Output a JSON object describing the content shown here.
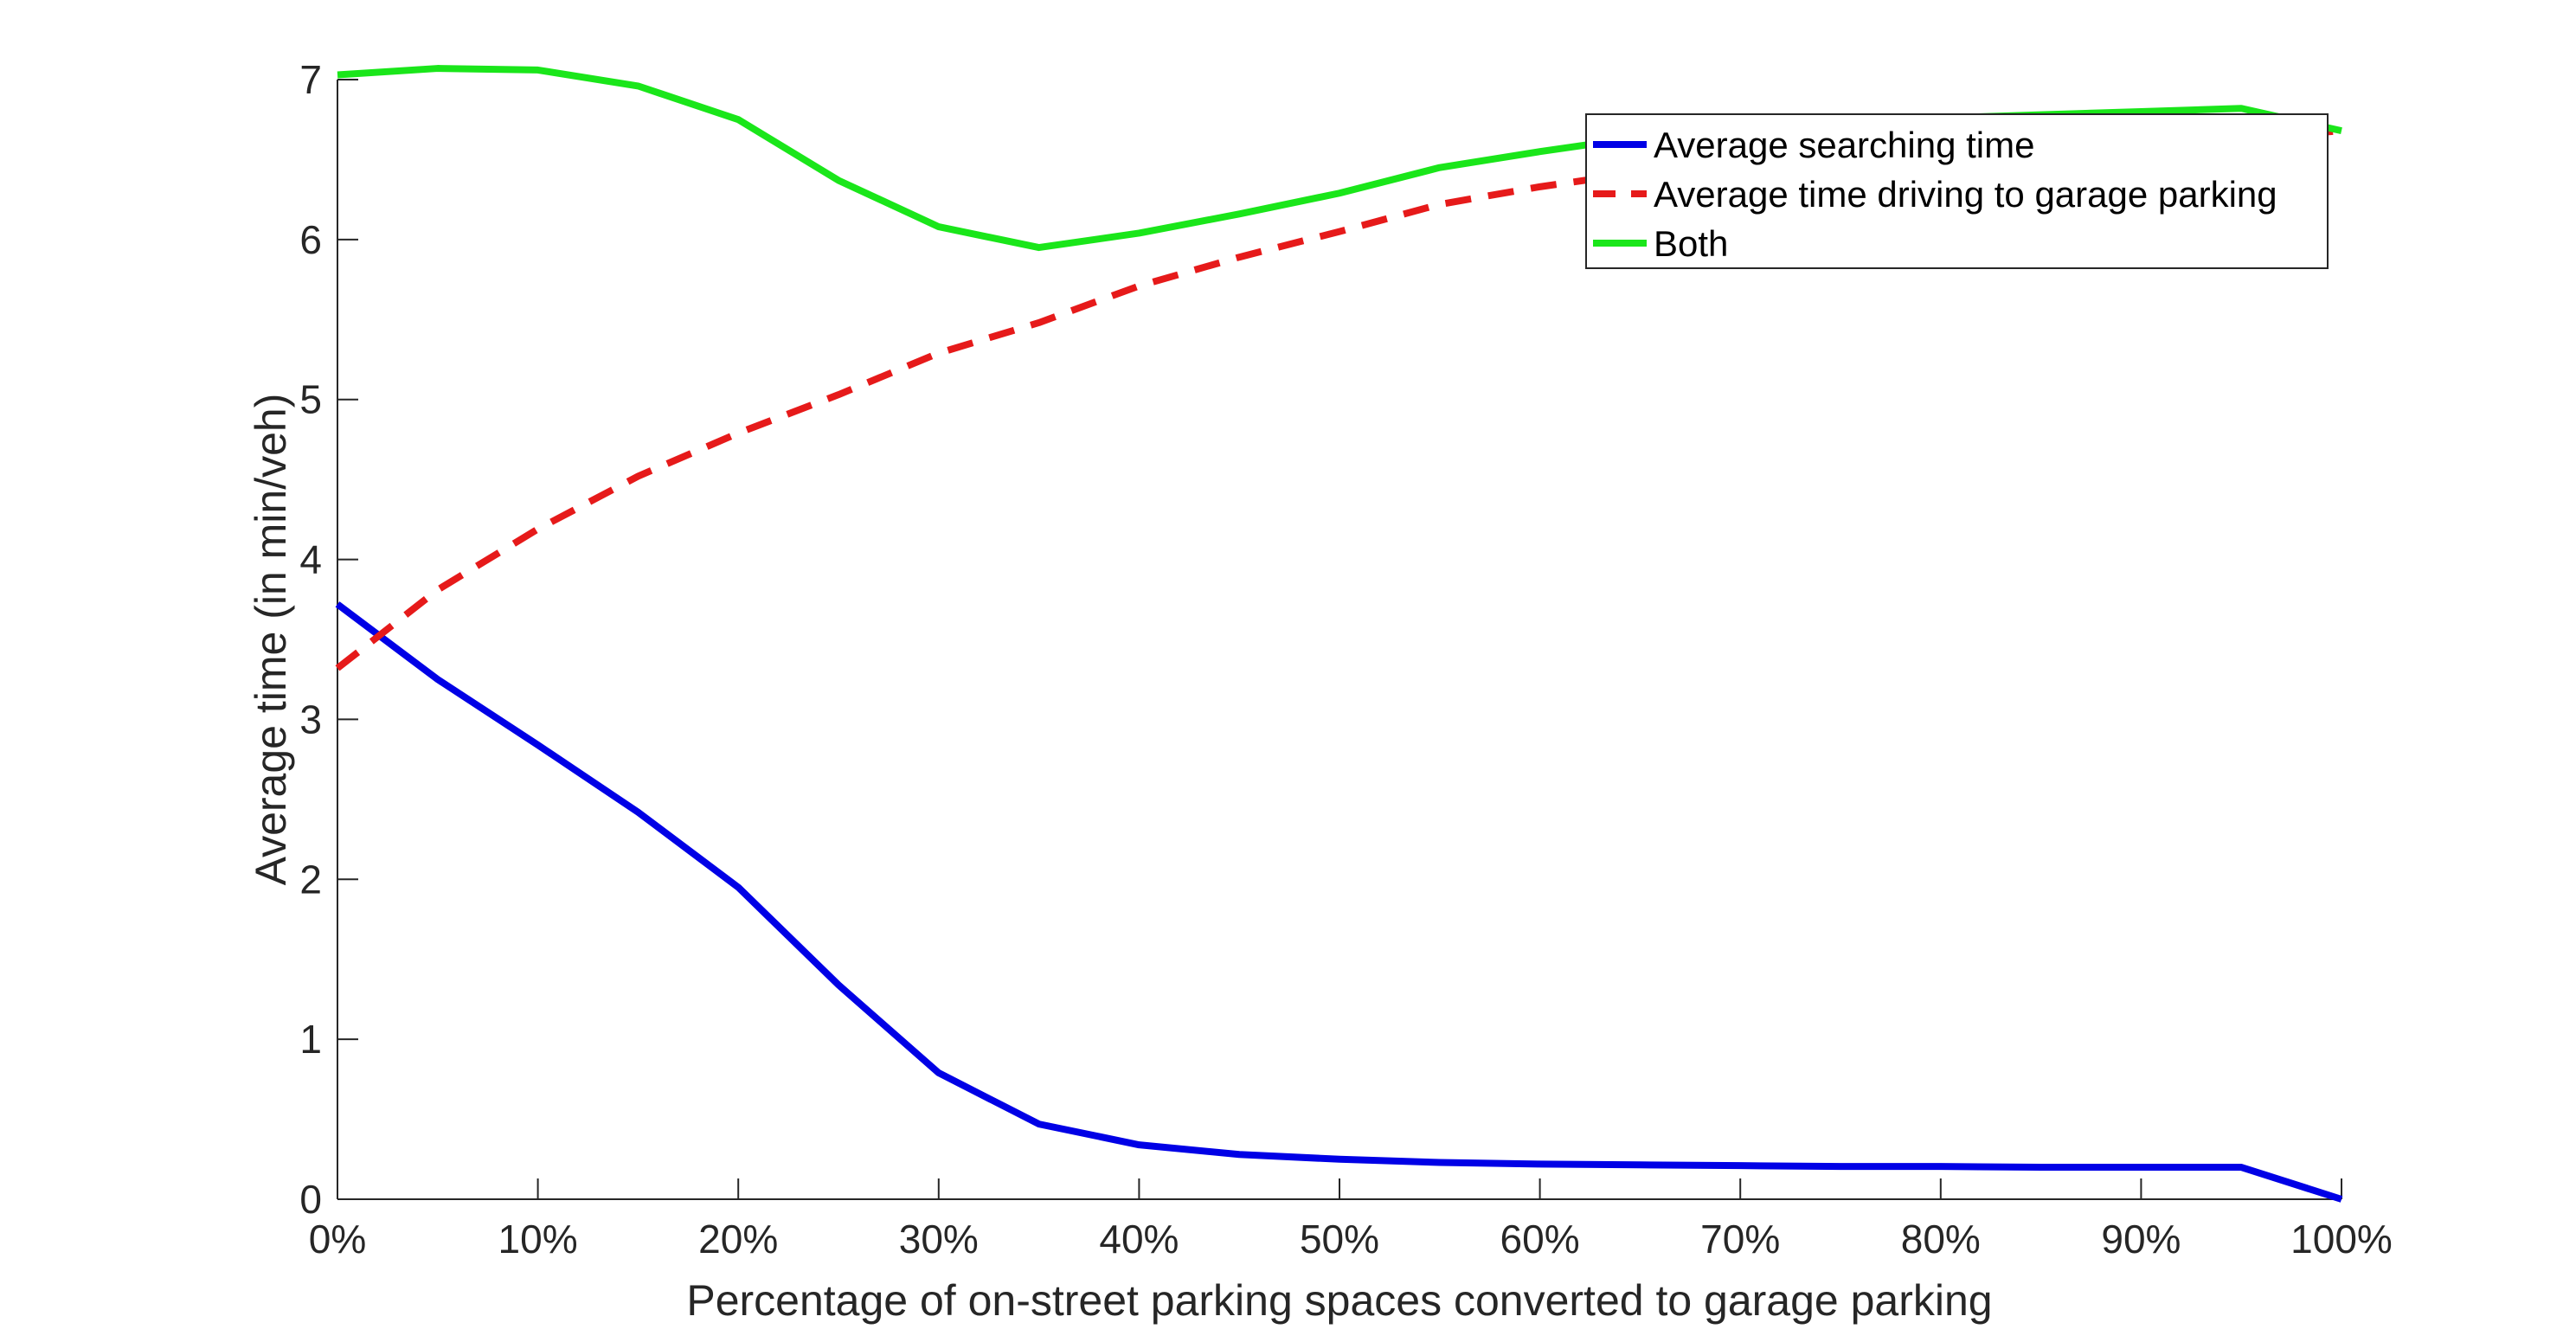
{
  "chart_data": {
    "type": "line",
    "title": "",
    "xlabel": "Percentage of on-street parking spaces converted to garage parking",
    "ylabel": "Average time (in min/veh)",
    "x": [
      0,
      5,
      10,
      15,
      20,
      25,
      30,
      35,
      40,
      45,
      50,
      55,
      60,
      65,
      70,
      75,
      80,
      85,
      90,
      95,
      100
    ],
    "xlim": [
      0,
      100
    ],
    "ylim": [
      0,
      7
    ],
    "xticks": [
      0,
      10,
      20,
      30,
      40,
      50,
      60,
      70,
      80,
      90,
      100
    ],
    "xtick_labels": [
      "0%",
      "10%",
      "20%",
      "30%",
      "40%",
      "50%",
      "60%",
      "70%",
      "80%",
      "90%",
      "100%"
    ],
    "yticks": [
      0,
      1,
      2,
      3,
      4,
      5,
      6,
      7
    ],
    "ytick_labels": [
      "0",
      "1",
      "2",
      "3",
      "4",
      "5",
      "6",
      "7"
    ],
    "grid": false,
    "legend_position": "top-right",
    "series": [
      {
        "name": "Average searching time",
        "color": "#0000e6",
        "style": "solid",
        "values": [
          3.72,
          3.25,
          2.84,
          2.42,
          1.95,
          1.34,
          0.79,
          0.47,
          0.34,
          0.28,
          0.25,
          0.23,
          0.22,
          0.215,
          0.21,
          0.205,
          0.205,
          0.2,
          0.2,
          0.2,
          0.0
        ]
      },
      {
        "name": "Average time driving to garage parking",
        "color": "#e61a1a",
        "style": "dashed",
        "values": [
          3.32,
          3.81,
          4.19,
          4.52,
          4.79,
          5.03,
          5.29,
          5.48,
          5.71,
          5.89,
          6.05,
          6.22,
          6.33,
          6.42,
          6.48,
          6.52,
          6.55,
          6.57,
          6.6,
          6.63,
          6.68
        ]
      },
      {
        "name": "Both",
        "color": "#1ae61a",
        "style": "solid",
        "values": [
          7.03,
          7.07,
          7.06,
          6.96,
          6.75,
          6.37,
          6.08,
          5.95,
          6.04,
          6.16,
          6.29,
          6.45,
          6.55,
          6.64,
          6.69,
          6.73,
          6.76,
          6.78,
          6.8,
          6.82,
          6.68
        ]
      }
    ]
  }
}
